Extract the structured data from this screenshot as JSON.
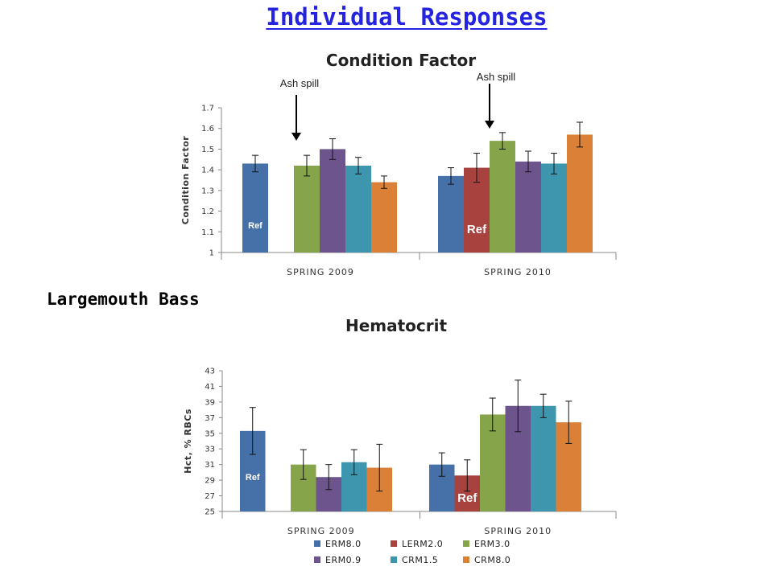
{
  "page": {
    "title": "Individual Responses",
    "side_label": "Largemouth Bass"
  },
  "colors": {
    "ERM8.0": "#4670a8",
    "LERM2.0": "#a8423f",
    "ERM3.0": "#86a44a",
    "ERM0.9": "#6e548d",
    "CRM1.5": "#3d96ae",
    "CRM8.0": "#da8137"
  },
  "chart_data": [
    {
      "type": "bar",
      "title": "Condition Factor",
      "ylabel": "Condition Factor",
      "ylim": [
        1,
        1.7
      ],
      "yticks": [
        "1",
        "1.1",
        "1.2",
        "1.3",
        "1.4",
        "1.5",
        "1.6",
        "1.7"
      ],
      "categories": [
        "SPRING 2009",
        "SPRING 2010"
      ],
      "series": [
        {
          "name": "ERM8.0",
          "values": [
            1.43,
            1.37
          ],
          "errors": [
            0.04,
            0.04
          ]
        },
        {
          "name": "LERM2.0",
          "values": [
            null,
            1.41
          ],
          "errors": [
            null,
            0.07
          ]
        },
        {
          "name": "ERM3.0",
          "values": [
            1.42,
            1.54
          ],
          "errors": [
            0.05,
            0.04
          ]
        },
        {
          "name": "ERM0.9",
          "values": [
            1.5,
            1.44
          ],
          "errors": [
            0.05,
            0.05
          ]
        },
        {
          "name": "CRM1.5",
          "values": [
            1.42,
            1.43
          ],
          "errors": [
            0.04,
            0.05
          ]
        },
        {
          "name": "CRM8.0",
          "values": [
            1.34,
            1.57
          ],
          "errors": [
            0.03,
            0.06
          ]
        }
      ],
      "bar_labels": [
        {
          "category": "SPRING 2009",
          "series": "ERM8.0",
          "text": "Ref"
        },
        {
          "category": "SPRING 2010",
          "series": "LERM2.0",
          "text": "Ref"
        }
      ],
      "annotations": [
        {
          "text": "Ash spill",
          "category": "SPRING 2009"
        },
        {
          "text": "Ash spill",
          "category": "SPRING 2010"
        }
      ]
    },
    {
      "type": "bar",
      "title": "Hematocrit",
      "ylabel": "Hct, % RBCs",
      "ylim": [
        25,
        43
      ],
      "yticks": [
        "25",
        "27",
        "29",
        "31",
        "33",
        "35",
        "37",
        "39",
        "41",
        "43"
      ],
      "categories": [
        "SPRING 2009",
        "SPRING 2010"
      ],
      "series": [
        {
          "name": "ERM8.0",
          "values": [
            35.3,
            31.0
          ],
          "errors": [
            3.0,
            1.5
          ]
        },
        {
          "name": "LERM2.0",
          "values": [
            null,
            29.6
          ],
          "errors": [
            null,
            2.0
          ]
        },
        {
          "name": "ERM3.0",
          "values": [
            31.0,
            37.4
          ],
          "errors": [
            1.9,
            2.1
          ]
        },
        {
          "name": "ERM0.9",
          "values": [
            29.4,
            38.5
          ],
          "errors": [
            1.6,
            3.3
          ]
        },
        {
          "name": "CRM1.5",
          "values": [
            31.3,
            38.5
          ],
          "errors": [
            1.6,
            1.5
          ]
        },
        {
          "name": "CRM8.0",
          "values": [
            30.6,
            36.4
          ],
          "errors": [
            3.0,
            2.7
          ]
        }
      ],
      "bar_labels": [
        {
          "category": "SPRING 2009",
          "series": "ERM8.0",
          "text": "Ref"
        },
        {
          "category": "SPRING 2010",
          "series": "LERM2.0",
          "text": "Ref"
        }
      ],
      "legend": {
        "position": "bottom",
        "entries": [
          "ERM8.0",
          "LERM2.0",
          "ERM3.0",
          "ERM0.9",
          "CRM1.5",
          "CRM8.0"
        ]
      }
    }
  ]
}
